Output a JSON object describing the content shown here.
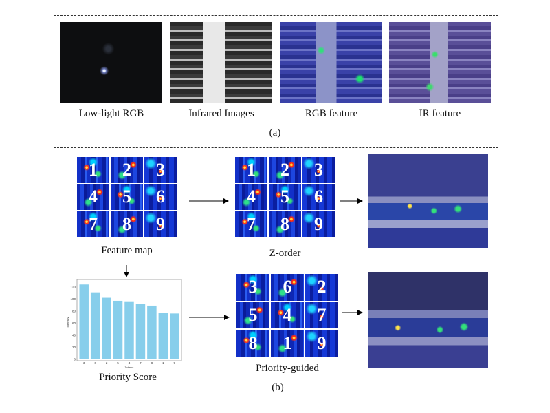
{
  "panel_a": {
    "images": [
      {
        "caption": "Low-light RGB"
      },
      {
        "caption": "Infrared Images"
      },
      {
        "caption": "RGB feature"
      },
      {
        "caption": "IR feature"
      }
    ],
    "label": "(a)"
  },
  "panel_b": {
    "feature_map": {
      "caption": "Feature map",
      "tiles": [
        "1",
        "2",
        "3",
        "4",
        "5",
        "6",
        "7",
        "8",
        "9"
      ]
    },
    "z_order": {
      "caption": "Z-order",
      "tiles": [
        "1",
        "2",
        "3",
        "4",
        "5",
        "6",
        "7",
        "8",
        "9"
      ]
    },
    "priority_guided": {
      "caption": "Priority-guided",
      "tiles": [
        "3",
        "6",
        "2",
        "5",
        "4",
        "7",
        "8",
        "1",
        "9"
      ]
    },
    "priority_score_caption": "Priority Score",
    "label": "(b)"
  },
  "chart_data": {
    "type": "bar",
    "categories": [
      "3",
      "6",
      "2",
      "5",
      "4",
      "7",
      "8",
      "1",
      "9"
    ],
    "values": [
      124,
      111,
      102,
      97,
      95,
      92,
      89,
      77,
      76
    ],
    "xlabel": "Tokens",
    "ylabel": "Intensity",
    "ylim": [
      0,
      130
    ],
    "yticks": [
      0,
      20,
      40,
      60,
      80,
      100,
      120
    ],
    "bar_color": "#87ceeb"
  }
}
